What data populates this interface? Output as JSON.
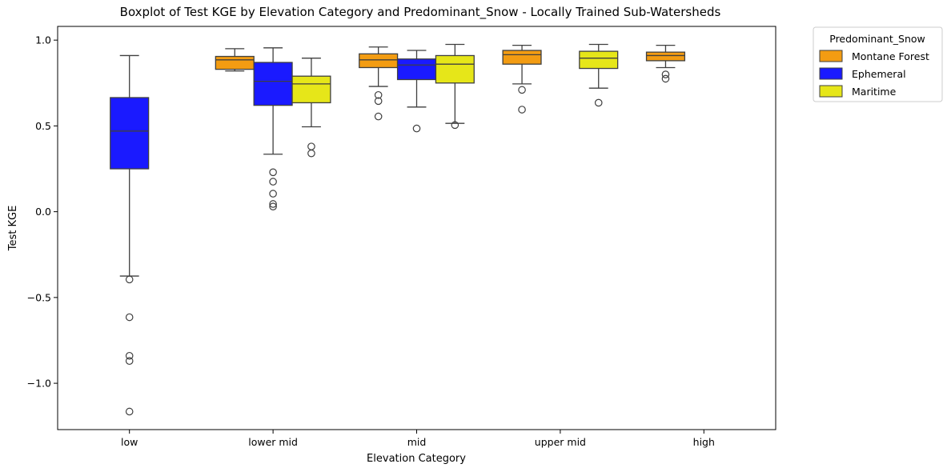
{
  "chart_data": {
    "type": "boxplot",
    "title": "Boxplot of Test KGE by Elevation Category and Predominant_Snow - Locally Trained Sub-Watersheds",
    "xlabel": "Elevation Category",
    "ylabel": "Test KGE",
    "ylim": [
      -1.27,
      1.08
    ],
    "yticks": [
      1.0,
      0.5,
      0.0,
      -0.5,
      -1.0
    ],
    "ytick_labels": [
      "1.0",
      "0.5",
      "0.0",
      "−0.5",
      "−1.0"
    ],
    "categories": [
      "low",
      "lower mid",
      "mid",
      "upper mid",
      "high"
    ],
    "legend": {
      "title": "Predominant_Snow",
      "placement": "outside-top-right"
    },
    "grid": false,
    "series": [
      {
        "name": "Montane Forest",
        "color": "#f39c12",
        "boxes": [
          null,
          {
            "whisker_low": 0.82,
            "q1": 0.83,
            "median": 0.885,
            "q3": 0.905,
            "whisker_high": 0.95,
            "outliers": []
          },
          {
            "whisker_low": 0.73,
            "q1": 0.84,
            "median": 0.885,
            "q3": 0.92,
            "whisker_high": 0.96,
            "outliers": [
              0.68,
              0.645,
              0.555
            ]
          },
          {
            "whisker_low": 0.745,
            "q1": 0.86,
            "median": 0.915,
            "q3": 0.94,
            "whisker_high": 0.97,
            "outliers": [
              0.71,
              0.595
            ]
          },
          {
            "whisker_low": 0.84,
            "q1": 0.88,
            "median": 0.91,
            "q3": 0.93,
            "whisker_high": 0.97,
            "outliers": [
              0.8,
              0.775
            ]
          }
        ]
      },
      {
        "name": "Ephemeral",
        "color": "#1a1aff",
        "boxes": [
          {
            "whisker_low": -0.375,
            "q1": 0.25,
            "median": 0.47,
            "q3": 0.665,
            "whisker_high": 0.91,
            "outliers": [
              -0.395,
              -0.615,
              -0.84,
              -0.87,
              -1.165
            ]
          },
          {
            "whisker_low": 0.335,
            "q1": 0.62,
            "median": 0.76,
            "q3": 0.87,
            "whisker_high": 0.955,
            "outliers": [
              0.23,
              0.175,
              0.105,
              0.045,
              0.03
            ]
          },
          {
            "whisker_low": 0.61,
            "q1": 0.77,
            "median": 0.855,
            "q3": 0.89,
            "whisker_high": 0.94,
            "outliers": [
              0.485
            ]
          },
          null,
          null
        ]
      },
      {
        "name": "Maritime",
        "color": "#e6e619",
        "boxes": [
          null,
          {
            "whisker_low": 0.495,
            "q1": 0.635,
            "median": 0.745,
            "q3": 0.79,
            "whisker_high": 0.895,
            "outliers": [
              0.38,
              0.34
            ]
          },
          {
            "whisker_low": 0.515,
            "q1": 0.75,
            "median": 0.86,
            "q3": 0.91,
            "whisker_high": 0.975,
            "outliers": [
              0.505
            ]
          },
          {
            "whisker_low": 0.72,
            "q1": 0.835,
            "median": 0.895,
            "q3": 0.935,
            "whisker_high": 0.975,
            "outliers": [
              0.635
            ]
          },
          null
        ]
      }
    ]
  }
}
